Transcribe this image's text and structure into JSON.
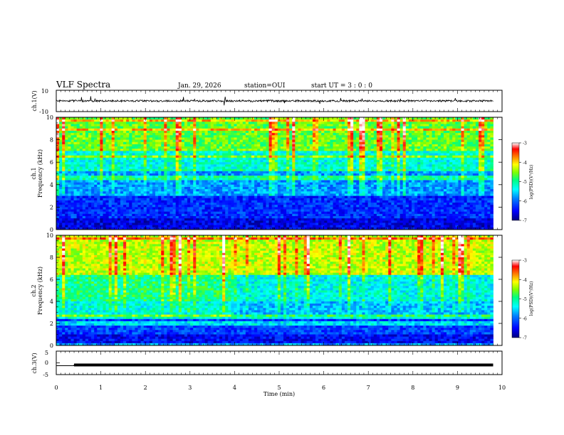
{
  "header": {
    "title": "VLF Spectra",
    "date": "Jan. 29, 2026",
    "station": "station=OUI",
    "start": "start  UT =  3 : 0  : 0"
  },
  "colors": {
    "spectrogram_scale": [
      "#000080",
      "#0000ff",
      "#0080ff",
      "#00ffff",
      "#00ff80",
      "#80ff00",
      "#ffff00",
      "#ff8000",
      "#ff0000",
      "#ffffff"
    ]
  },
  "chart_data": [
    {
      "type": "line",
      "panel": "ch1-waveform",
      "ylabel": "ch.1(V)",
      "ylim": [
        -10,
        10
      ],
      "yticks": [
        "10",
        "-10"
      ],
      "xlim": [
        0,
        10
      ],
      "series": [
        {
          "x": [
            0,
            9.8
          ],
          "values": [
            0,
            0
          ]
        }
      ],
      "note_visible": "noisy trace near 0 V with sparse spikes"
    },
    {
      "type": "heatmap",
      "panel": "ch1-spectrogram",
      "ylabel_channel": "ch.1",
      "ylabel": "Frequency (kHz)",
      "ylim": [
        0,
        10
      ],
      "yticks": [
        "0",
        "2",
        "4",
        "6",
        "8",
        "10"
      ],
      "xlim": [
        0,
        10
      ],
      "colorbar": {
        "label": "log(PSD)(V²/Hz)",
        "ticks": [
          "-3",
          "-4",
          "-5",
          "-6",
          "-7"
        ],
        "range": [
          -7,
          -3
        ]
      },
      "band_levels_log_psd": [
        {
          "band_khz": [
            0,
            1
          ],
          "level": -6.6
        },
        {
          "band_khz": [
            1,
            3
          ],
          "level": -6.3
        },
        {
          "band_khz": [
            3,
            5.5
          ],
          "level": -5.8
        },
        {
          "band_khz": [
            5.5,
            7
          ],
          "level": -5.3
        },
        {
          "band_khz": [
            7,
            10
          ],
          "level": -4.7
        }
      ]
    },
    {
      "type": "heatmap",
      "panel": "ch2-spectrogram",
      "ylabel_channel": "ch.2",
      "ylabel": "Frequency (kHz)",
      "ylim": [
        0,
        10
      ],
      "yticks": [
        "0",
        "2",
        "4",
        "6",
        "8",
        "10"
      ],
      "xlim": [
        0,
        10
      ],
      "colorbar": {
        "label": "log(PSD)(V²/Hz)",
        "ticks": [
          "-3",
          "-4",
          "-5",
          "-6",
          "-7"
        ],
        "range": [
          -7,
          -3
        ]
      },
      "band_levels_log_psd": [
        {
          "band_khz": [
            0,
            1
          ],
          "level": -6.5
        },
        {
          "band_khz": [
            1,
            2.5
          ],
          "level": -6.2
        },
        {
          "band_khz": [
            2.5,
            4
          ],
          "level": -5.3
        },
        {
          "band_khz": [
            4,
            6.5
          ],
          "level": -5.0
        },
        {
          "band_khz": [
            6.5,
            10
          ],
          "level": -4.4
        }
      ]
    },
    {
      "type": "line",
      "panel": "ch3-waveform",
      "ylabel": "ch.3(V)",
      "ylim": [
        -5,
        5
      ],
      "yticks": [
        "5",
        "0",
        "-5"
      ],
      "xlim": [
        0,
        10
      ],
      "xlabel": "Time (min)",
      "xticks": [
        "0",
        "1",
        "2",
        "3",
        "4",
        "5",
        "6",
        "7",
        "8",
        "9",
        "10"
      ],
      "series": [
        {
          "x": [
            0,
            0.4,
            0.4,
            9.8
          ],
          "values": [
            -1.2,
            -1.2,
            -0.9,
            -0.9
          ]
        }
      ]
    }
  ]
}
